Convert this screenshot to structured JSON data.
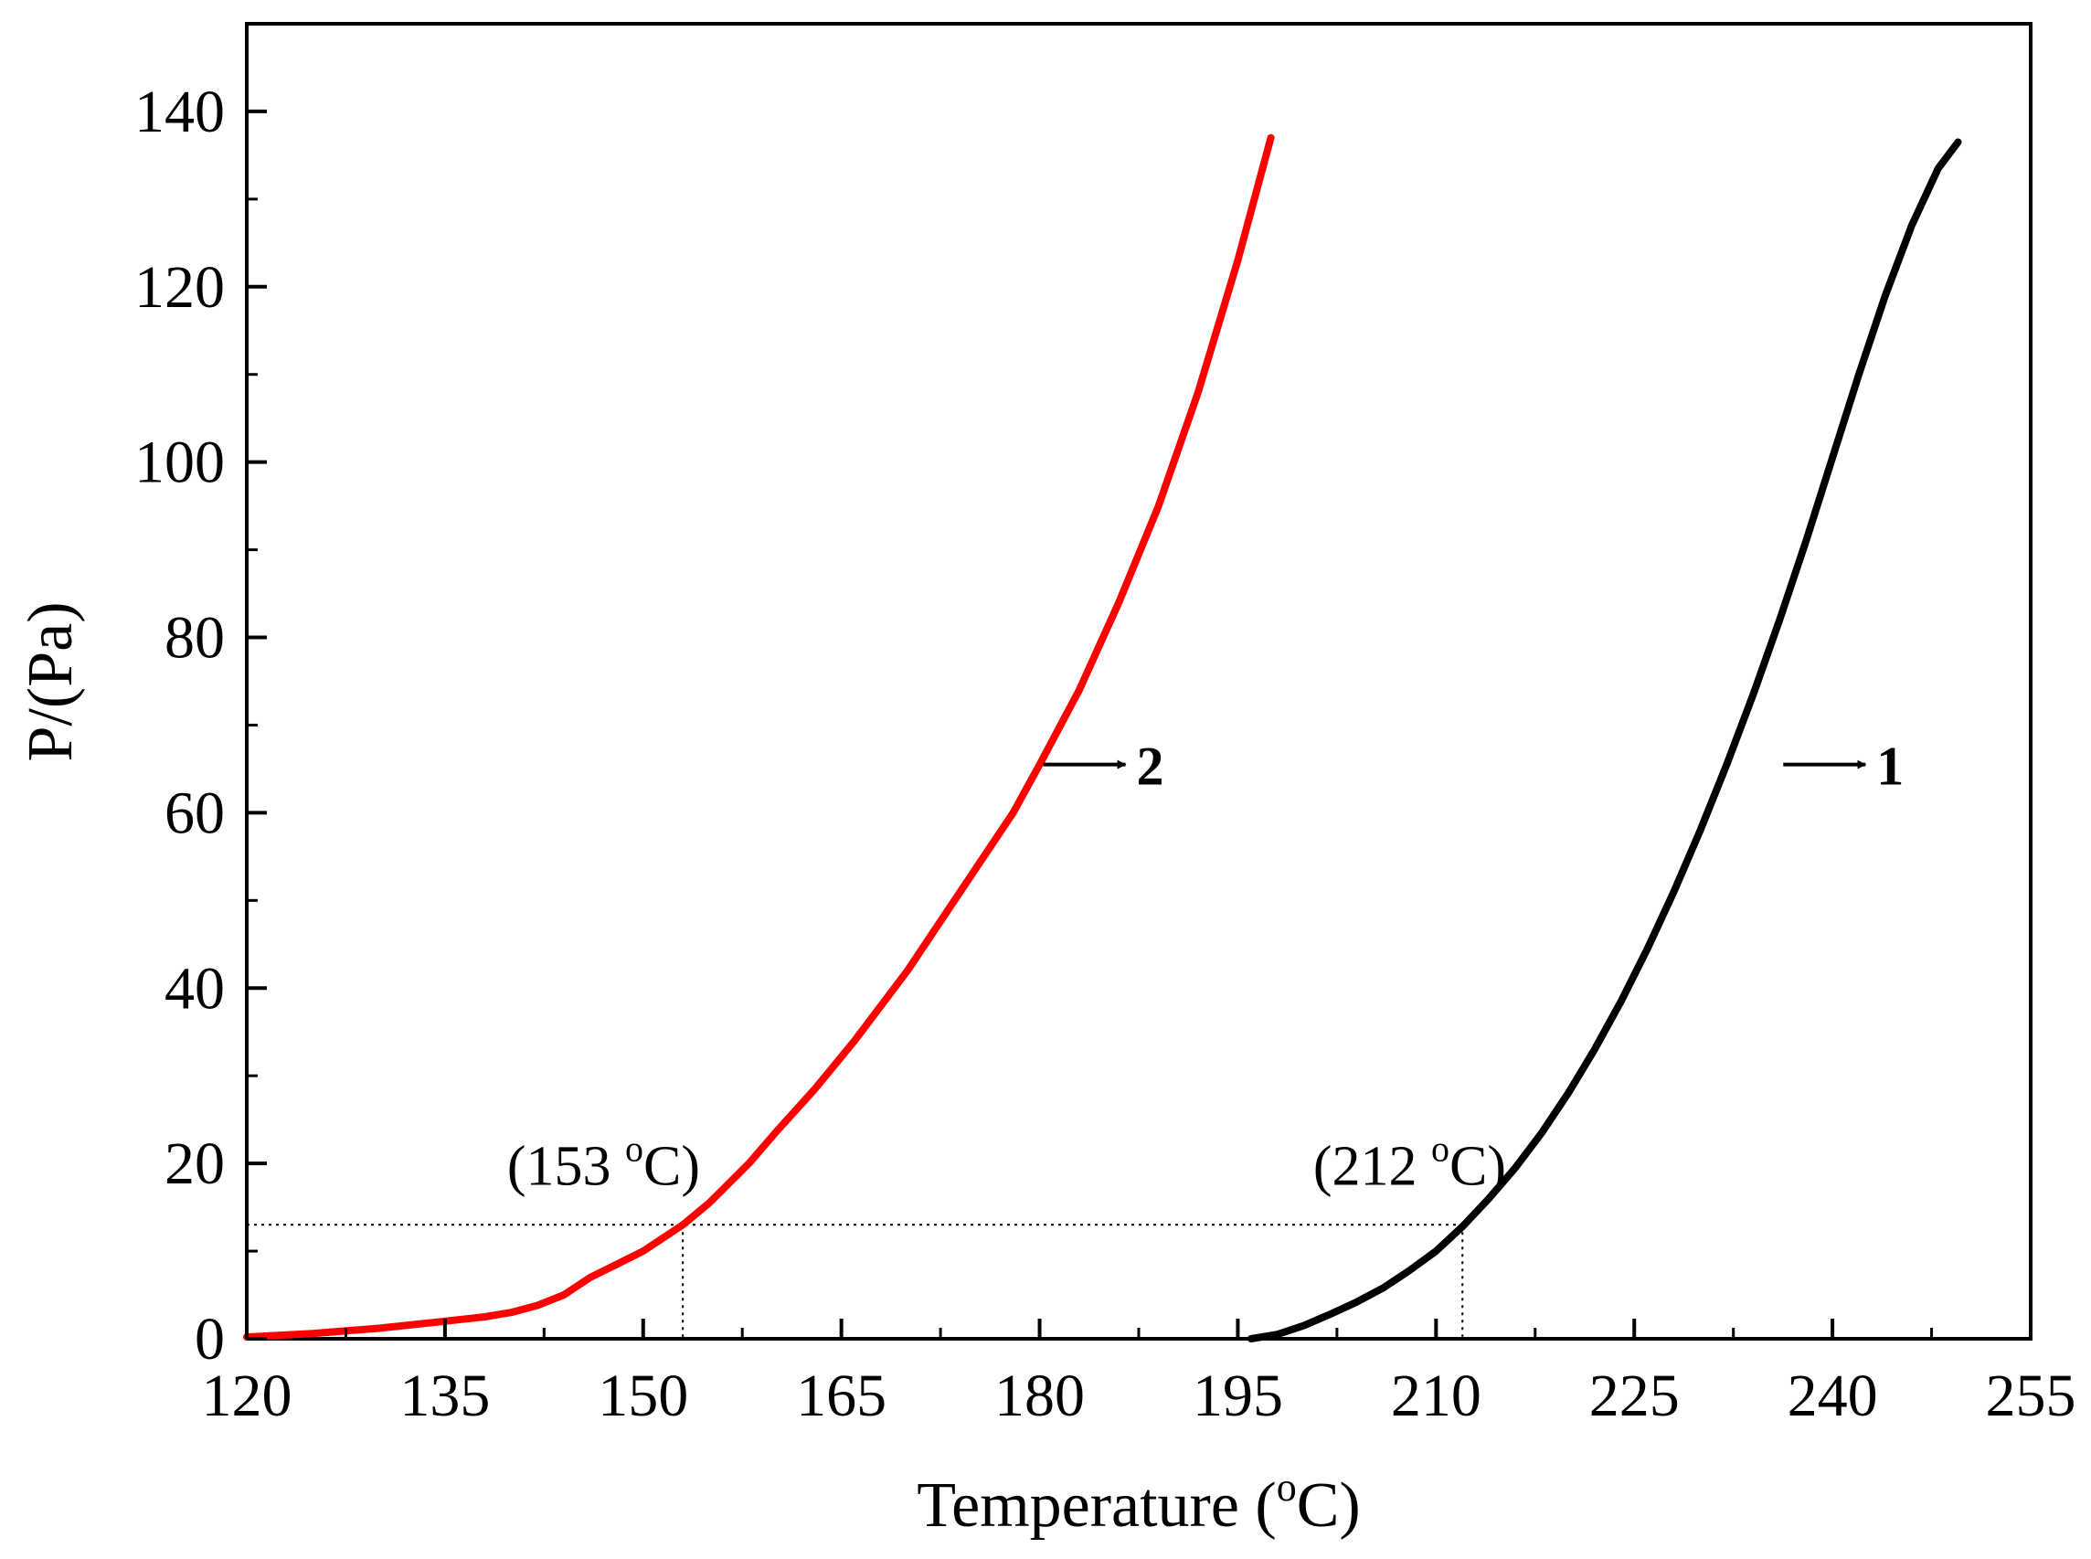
{
  "chart_data": {
    "type": "line",
    "xlabel": "Temperature (",
    "xlabel_degree": "o",
    "xlabel_unit": "C)",
    "ylabel": "P/(Pa)",
    "xlim": [
      120,
      255
    ],
    "ylim": [
      0,
      150
    ],
    "x_ticks": [
      "120",
      "135",
      "150",
      "165",
      "180",
      "195",
      "210",
      "225",
      "240",
      "255"
    ],
    "y_ticks": [
      "0",
      "20",
      "40",
      "60",
      "80",
      "100",
      "120",
      "140"
    ],
    "grid": false,
    "series": [
      {
        "name": "1",
        "color": "#000000",
        "x": [
          196,
          198,
          200,
          202,
          204,
          206,
          208,
          210,
          212,
          214,
          216,
          218,
          220,
          222,
          224,
          226,
          228,
          230,
          232,
          234,
          236,
          238,
          240,
          242,
          244,
          246,
          248,
          249.5
        ],
        "y": [
          0,
          0.5,
          1.5,
          2.8,
          4.2,
          5.8,
          7.8,
          10,
          12.8,
          16,
          19.5,
          23.5,
          28,
          33,
          38.5,
          44.5,
          51,
          58,
          65.5,
          73.5,
          82,
          91,
          100.5,
          110,
          119,
          127,
          133.5,
          136.5
        ]
      },
      {
        "name": "2",
        "color": "#ff0000",
        "x": [
          120,
          125,
          130,
          135,
          138,
          140,
          142,
          144,
          146,
          148,
          150,
          152,
          153,
          155,
          158,
          160,
          163,
          166,
          170,
          174,
          178,
          180,
          183,
          186,
          189,
          192,
          195,
          197.5
        ],
        "y": [
          0.2,
          0.6,
          1.2,
          2,
          2.5,
          3,
          3.8,
          5,
          7,
          8.5,
          10,
          12,
          13,
          15.5,
          20,
          23.5,
          28.5,
          34,
          42,
          51,
          60,
          65.5,
          74,
          84,
          95,
          108,
          123,
          137
        ]
      }
    ],
    "annotations": [
      {
        "text": "(153 ",
        "degree": "o",
        "unit": "C)",
        "x": 153,
        "y": 13
      },
      {
        "text": "(212 ",
        "degree": "o",
        "unit": "C)",
        "x": 212,
        "y": 13
      }
    ],
    "reference_line_y": 13,
    "series_labels": [
      {
        "label": "2",
        "x": 180,
        "y": 65.5
      },
      {
        "label": "1",
        "x": 236,
        "y": 65.5
      }
    ]
  }
}
